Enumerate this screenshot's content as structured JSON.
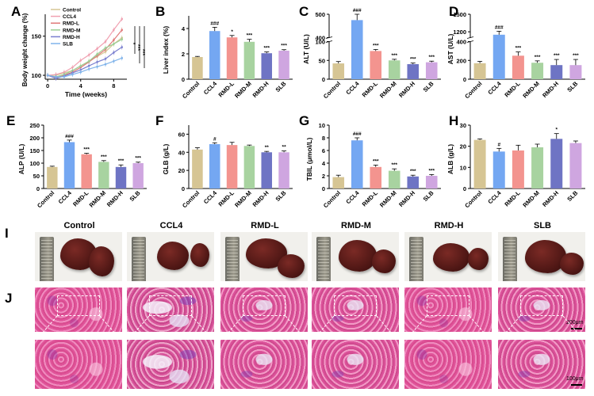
{
  "figure": {
    "panel_letters": [
      "A",
      "B",
      "C",
      "D",
      "E",
      "F",
      "G",
      "H",
      "I",
      "J"
    ],
    "groups": [
      "Control",
      "CCL4",
      "RMD-L",
      "RMD-M",
      "RMD-H",
      "SLB"
    ],
    "group_colors": [
      "#d6c594",
      "#74a7f2",
      "#f3948f",
      "#a8d3a0",
      "#6e74c4",
      "#cfa6e0"
    ],
    "photo_labels": [
      "Control",
      "CCL4",
      "RMD-L",
      "RMD-M",
      "RMD-H",
      "SLB"
    ],
    "scalebar_top": "200μm",
    "scalebar_bottom": "100μm"
  },
  "chart_data": [
    {
      "id": "A",
      "type": "line",
      "title": "",
      "xlabel": "Time (weeks)",
      "ylabel": "Body weight change (%)",
      "x": [
        0,
        1,
        2,
        3,
        4,
        5,
        6,
        7,
        8,
        9
      ],
      "xticks": [
        0,
        4,
        8
      ],
      "yticks": [
        100,
        150
      ],
      "ylim": [
        95,
        178
      ],
      "xlim": [
        -0.3,
        9.6
      ],
      "series": [
        {
          "name": "Control",
          "color": "#d6c594",
          "values": [
            100,
            100,
            103,
            106,
            112,
            118,
            124,
            130,
            140,
            148
          ]
        },
        {
          "name": "CCL4",
          "color": "#f0a0b0",
          "values": [
            100,
            101,
            104,
            110,
            119,
            126,
            134,
            143,
            158,
            172
          ]
        },
        {
          "name": "RMD-L",
          "color": "#e07a7a",
          "values": [
            100,
            97,
            100,
            104,
            110,
            117,
            125,
            133,
            145,
            158
          ]
        },
        {
          "name": "RMD-M",
          "color": "#9ccf95",
          "values": [
            100,
            98,
            101,
            106,
            112,
            118,
            127,
            135,
            140,
            146
          ]
        },
        {
          "name": "RMD-H",
          "color": "#7a7fcf",
          "values": [
            100,
            96,
            99,
            103,
            107,
            112,
            117,
            121,
            129,
            136
          ]
        },
        {
          "name": "SLB",
          "color": "#7fb3ea",
          "values": [
            100,
            98,
            98,
            101,
            104,
            108,
            111,
            114,
            118,
            122
          ]
        }
      ],
      "significance": [
        "*",
        "***",
        "***"
      ],
      "legend": [
        "Control",
        "CCL4",
        "RMD-L",
        "RMD-M",
        "RMD-H",
        "SLB"
      ]
    },
    {
      "id": "B",
      "type": "bar",
      "ylabel": "Liver index (%)",
      "categories": [
        "Control",
        "CCL4",
        "RMD-L",
        "RMD-M",
        "RMD-H",
        "SLB"
      ],
      "values": [
        1.75,
        3.8,
        3.3,
        2.95,
        2.05,
        2.25
      ],
      "errors": [
        0.05,
        0.3,
        0.15,
        0.2,
        0.1,
        0.08
      ],
      "ylim": [
        0,
        5
      ],
      "yticks": [
        0,
        2,
        4
      ],
      "annotations": [
        "",
        "###",
        "*",
        "***",
        "***",
        "***"
      ]
    },
    {
      "id": "C",
      "type": "bar",
      "ylabel": "ALT (U/L)",
      "broken": true,
      "categories": [
        "Control",
        "CCL4",
        "RMD-L",
        "RMD-M",
        "RMD-H",
        "SLB"
      ],
      "values": [
        42,
        475,
        75,
        50,
        40,
        45
      ],
      "errors": [
        5,
        25,
        4,
        3,
        3,
        3
      ],
      "low_range": [
        0,
        100
      ],
      "high_range": [
        400,
        500
      ],
      "yticks_low": [
        0,
        50,
        100
      ],
      "yticks_high": [
        400,
        500
      ],
      "annotations": [
        "",
        "###",
        "***",
        "***",
        "***",
        "***"
      ]
    },
    {
      "id": "D",
      "type": "bar",
      "ylabel": "AST (U/L)",
      "broken": true,
      "categories": [
        "Control",
        "CCL4",
        "RMD-L",
        "RMD-M",
        "RMD-H",
        "SLB"
      ],
      "values": [
        170,
        1150,
        250,
        175,
        150,
        150
      ],
      "errors": [
        20,
        60,
        40,
        20,
        60,
        60
      ],
      "low_range": [
        0,
        400
      ],
      "high_range": [
        1100,
        1500
      ],
      "yticks_low": [
        0,
        200,
        400
      ],
      "yticks_high": [
        1200,
        1500
      ],
      "annotations": [
        "",
        "###",
        "***",
        "***",
        "***",
        "***"
      ]
    },
    {
      "id": "E",
      "type": "bar",
      "ylabel": "ALP (U/L)",
      "categories": [
        "Control",
        "CCL4",
        "RMD-L",
        "RMD-M",
        "RMD-H",
        "SLB"
      ],
      "values": [
        85,
        183,
        135,
        105,
        85,
        100
      ],
      "errors": [
        3,
        8,
        4,
        5,
        8,
        4
      ],
      "ylim": [
        0,
        250
      ],
      "yticks": [
        0,
        50,
        100,
        150,
        200,
        250
      ],
      "annotations": [
        "",
        "###",
        "***",
        "***",
        "***",
        "***"
      ]
    },
    {
      "id": "F",
      "type": "bar",
      "ylabel": "GLB (g/L)",
      "categories": [
        "Control",
        "CCL4",
        "RMD-L",
        "RMD-M",
        "RMD-H",
        "SLB"
      ],
      "values": [
        43,
        49,
        48,
        47,
        40,
        40
      ],
      "errors": [
        2,
        1.5,
        3,
        1,
        1,
        1.5
      ],
      "ylim": [
        0,
        70
      ],
      "yticks": [
        0,
        20,
        40,
        60
      ],
      "annotations": [
        "",
        "#",
        "",
        "",
        "**",
        "**"
      ]
    },
    {
      "id": "G",
      "type": "bar",
      "ylabel": "TBIL (μmol/L)",
      "categories": [
        "Control",
        "CCL4",
        "RMD-L",
        "RMD-M",
        "RMD-H",
        "SLB"
      ],
      "values": [
        1.8,
        7.6,
        3.4,
        2.8,
        1.9,
        2.0
      ],
      "errors": [
        0.3,
        0.4,
        0.3,
        0.3,
        0.2,
        0.2
      ],
      "ylim": [
        0,
        10
      ],
      "yticks": [
        0,
        2,
        4,
        6,
        8,
        10
      ],
      "annotations": [
        "",
        "###",
        "***",
        "***",
        "***",
        "***"
      ]
    },
    {
      "id": "H",
      "type": "bar",
      "ylabel": "ALB (g/L)",
      "categories": [
        "Control",
        "CCL4",
        "RMD-L",
        "RMD-M",
        "RMD-H",
        "SLB"
      ],
      "values": [
        23,
        17.5,
        18,
        19.5,
        23.5,
        21.5
      ],
      "errors": [
        0.5,
        1.5,
        2.5,
        1.5,
        2.5,
        1
      ],
      "ylim": [
        0,
        30
      ],
      "yticks": [
        0,
        10,
        20,
        30
      ],
      "annotations": [
        "",
        "#",
        "",
        "",
        "*",
        ""
      ]
    }
  ]
}
